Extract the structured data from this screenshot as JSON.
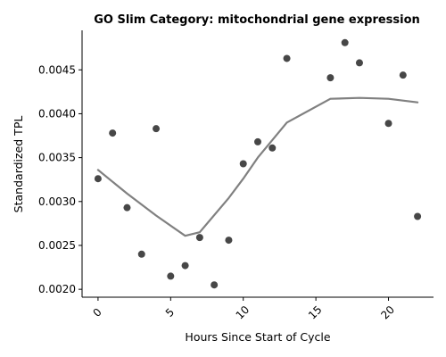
{
  "chart_data": {
    "type": "scatter",
    "title": "GO Slim Category: mitochondrial gene expression",
    "xlabel": "Hours Since Start of Cycle",
    "ylabel": "Standardized TPL",
    "xlim": [
      -1.1,
      23.1
    ],
    "ylim": [
      0.00191,
      0.00495
    ],
    "xticks": [
      0,
      5,
      10,
      15,
      20
    ],
    "xtick_labels": [
      "0",
      "5",
      "10",
      "15",
      "20"
    ],
    "xtick_rotation": 45,
    "yticks": [
      0.002,
      0.0025,
      0.003,
      0.0035,
      0.004,
      0.0045
    ],
    "ytick_labels": [
      "0.0020",
      "0.0025",
      "0.0030",
      "0.0035",
      "0.0040",
      "0.0045"
    ],
    "grid": false,
    "series": [
      {
        "kind": "points",
        "color": "#333333",
        "x": [
          0,
          1,
          2,
          3,
          4,
          5,
          6,
          7,
          8,
          9,
          10,
          11,
          12,
          13,
          16,
          17,
          18,
          20,
          21,
          22
        ],
        "y": [
          0.00326,
          0.00378,
          0.00293,
          0.0024,
          0.00383,
          0.00215,
          0.00227,
          0.00259,
          0.00205,
          0.00256,
          0.00343,
          0.00368,
          0.00361,
          0.00463,
          0.00441,
          0.00481,
          0.00458,
          0.00389,
          0.00444,
          0.00283
        ]
      },
      {
        "kind": "trend",
        "color": "#808080",
        "x": [
          0,
          2,
          4,
          6,
          7,
          9,
          10,
          11,
          13,
          16,
          18,
          20,
          21,
          22
        ],
        "y": [
          0.00336,
          0.00309,
          0.00284,
          0.00261,
          0.00265,
          0.00304,
          0.00326,
          0.0035,
          0.0039,
          0.00417,
          0.00418,
          0.00417,
          0.00415,
          0.00413
        ]
      }
    ]
  }
}
